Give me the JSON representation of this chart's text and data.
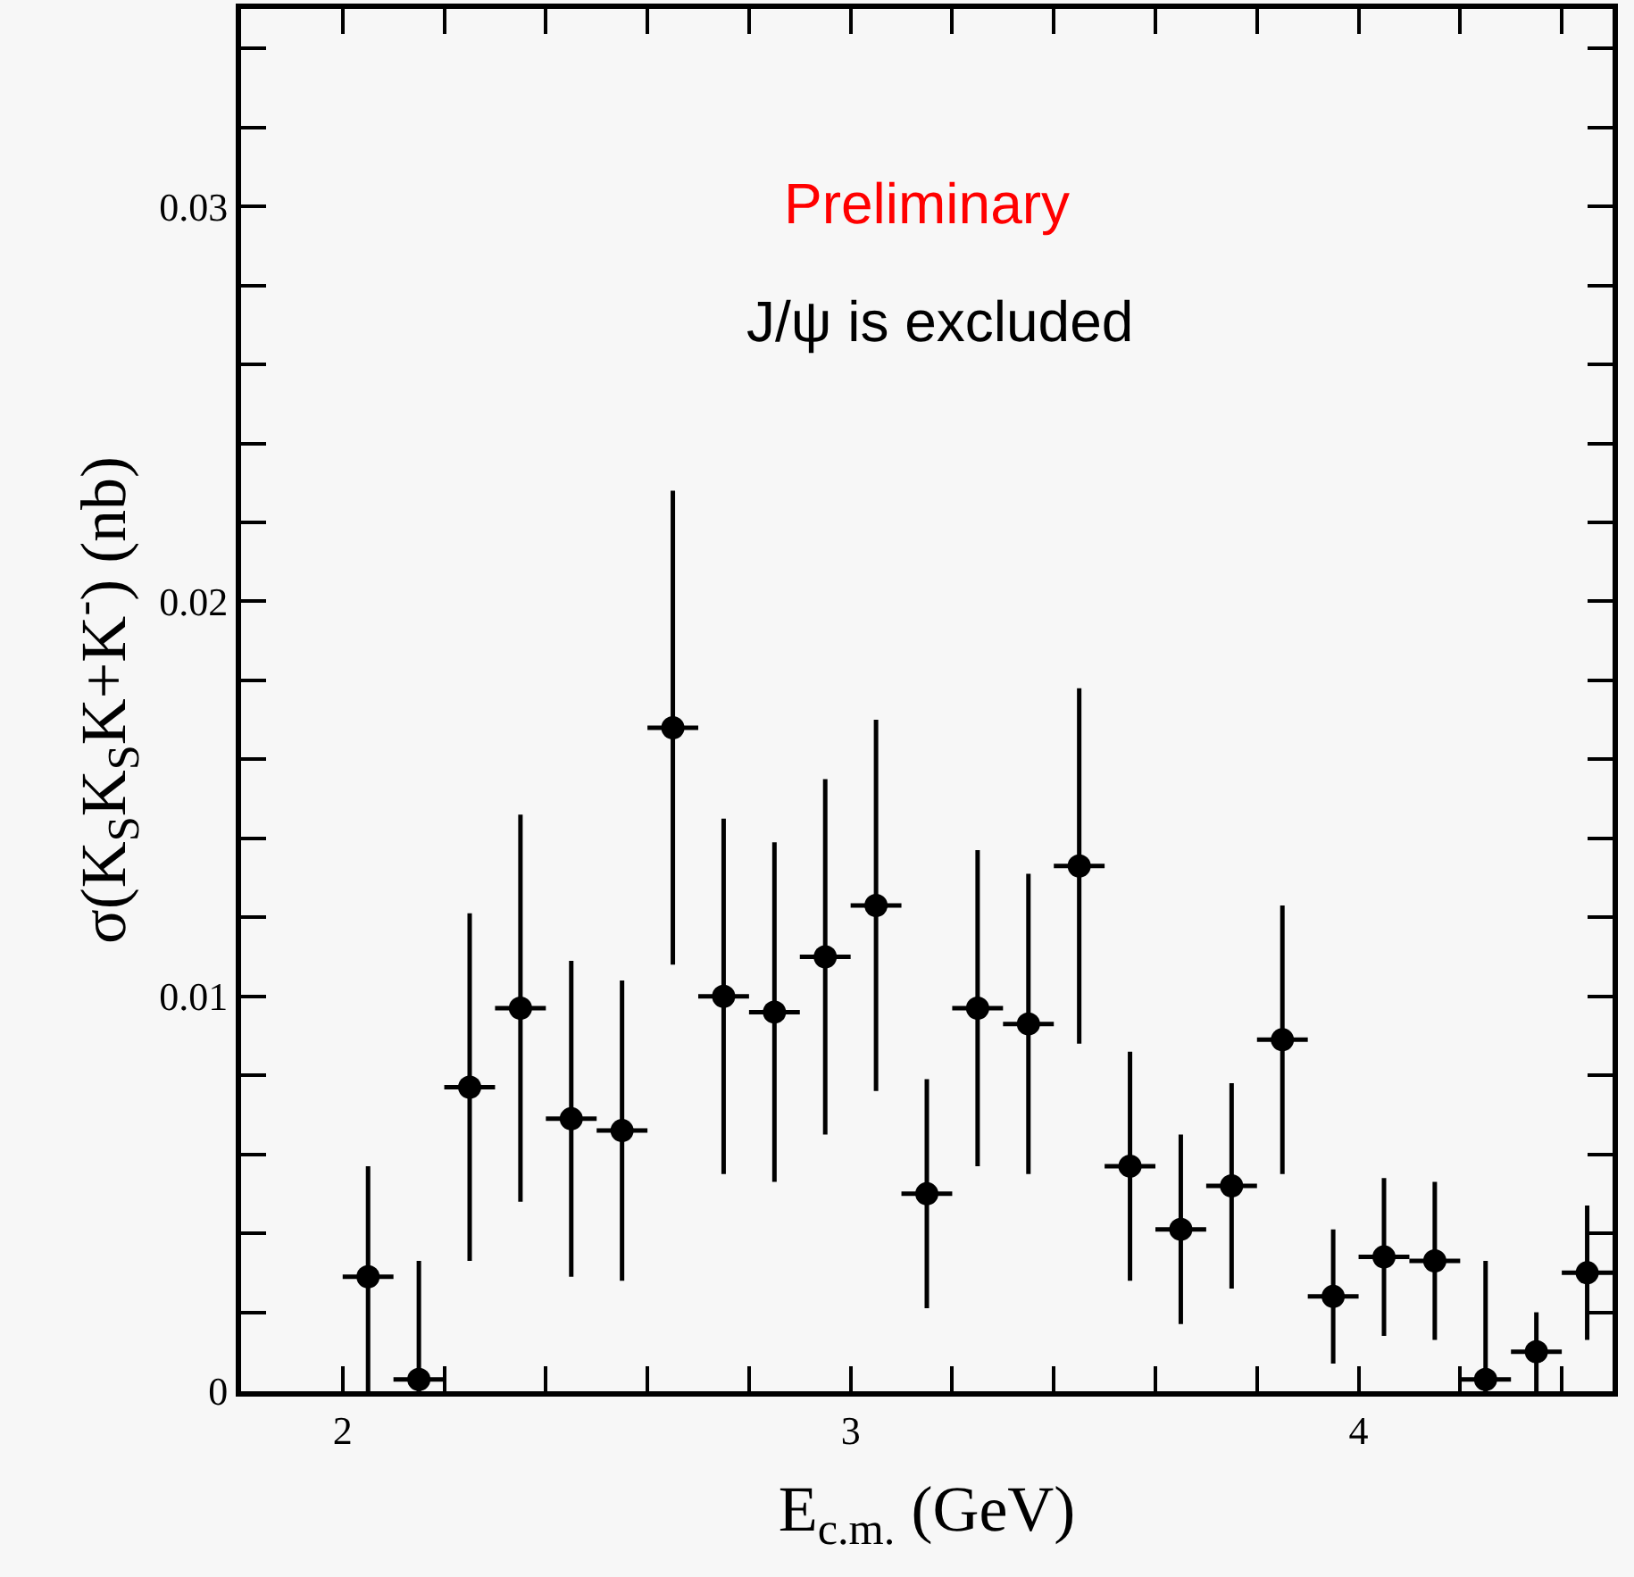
{
  "chart_data": {
    "type": "scatter",
    "xlabel": "E$_{c.m.}$ (GeV)",
    "ylabel": "σ(K$_{S}$K$_{S}$K+K$^{-}$) (nb)",
    "annotations": [
      "Preliminary",
      "J/ψ is excluded"
    ],
    "x": [
      2.05,
      2.15,
      2.25,
      2.35,
      2.45,
      2.55,
      2.65,
      2.75,
      2.85,
      2.95,
      3.05,
      3.15,
      3.25,
      3.35,
      3.45,
      3.55,
      3.65,
      3.75,
      3.85,
      3.95,
      4.05,
      4.15,
      4.25,
      4.35,
      4.45
    ],
    "series": [
      {
        "color": "#000000",
        "values": [
          0.0029,
          0.0003,
          0.0077,
          0.0097,
          0.0069,
          0.0066,
          0.0168,
          0.01,
          0.0096,
          0.011,
          0.0123,
          0.005,
          0.0097,
          0.0093,
          0.0133,
          0.0057,
          0.0041,
          0.0052,
          0.0089,
          0.0024,
          0.0034,
          0.0033,
          0.0003,
          0.001,
          0.003
        ],
        "errors": [
          [
            0,
            0.0057
          ],
          [
            0,
            0.0033
          ],
          0.0044,
          0.0049,
          0.004,
          0.0038,
          0.006,
          0.0045,
          0.0043,
          0.0045,
          0.0047,
          0.0029,
          0.004,
          0.0038,
          0.0045,
          0.0029,
          0.0024,
          0.0026,
          0.0034,
          0.0017,
          0.002,
          0.002,
          [
            0,
            0.0033
          ],
          0.001,
          0.0017
        ],
        "xerrors": [
          0.05,
          0.05,
          0.05,
          0.05,
          0.05,
          0.05,
          0.05,
          0.05,
          0.05,
          0.05,
          0.05,
          0.05,
          0.05,
          0.05,
          0.05,
          0.05,
          0.05,
          0.05,
          0.05,
          0.05,
          0.05,
          0.05,
          0.05,
          0.05,
          0.05
        ]
      }
    ],
    "xlim": [
      1.8,
      4.5
    ],
    "ylim": [
      0,
      0.035
    ],
    "xticks": [
      2,
      3,
      4,
      {
        "value": 2.2,
        "label": null
      },
      {
        "value": 2.4,
        "label": null
      },
      {
        "value": 2.6,
        "label": null
      },
      {
        "value": 2.8,
        "label": null
      },
      {
        "value": 3.2,
        "label": null
      },
      {
        "value": 3.4,
        "label": null
      },
      {
        "value": 3.6,
        "label": null
      },
      {
        "value": 3.8,
        "label": null
      },
      {
        "value": 4.2,
        "label": null
      },
      {
        "value": 4.4,
        "label": null
      }
    ],
    "yticks": [
      0,
      0.01,
      0.02,
      0.03,
      {
        "value": 0.002,
        "label": null
      },
      {
        "value": 0.004,
        "label": null
      },
      {
        "value": 0.006,
        "label": null
      },
      {
        "value": 0.008,
        "label": null
      },
      {
        "value": 0.012,
        "label": null
      },
      {
        "value": 0.014,
        "label": null
      },
      {
        "value": 0.016,
        "label": null
      },
      {
        "value": 0.018,
        "label": null
      },
      {
        "value": 0.022,
        "label": null
      },
      {
        "value": 0.024,
        "label": null
      },
      {
        "value": 0.026,
        "label": null
      },
      {
        "value": 0.028,
        "label": null
      },
      {
        "value": 0.032,
        "label": null
      },
      {
        "value": 0.034,
        "label": null
      }
    ],
    "marker": "circle",
    "line_style": "none"
  }
}
